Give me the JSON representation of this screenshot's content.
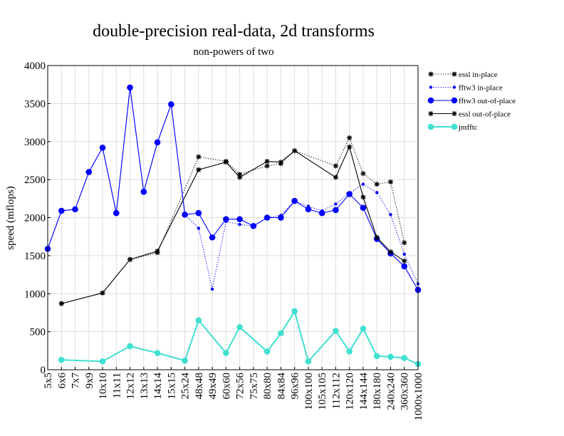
{
  "chart_data": {
    "type": "line",
    "title": "double-precision real-data, 2d transforms",
    "subtitle": "non-powers of two",
    "xlabel": "",
    "ylabel": "speed (mflops)",
    "ylim": [
      0,
      4000
    ],
    "yticks": [
      0,
      500,
      1000,
      1500,
      2000,
      2500,
      3000,
      3500,
      4000
    ],
    "grid": true,
    "legend_position": "right",
    "categories": [
      "5x5",
      "6x6",
      "7x7",
      "9x9",
      "10x10",
      "11x11",
      "12x12",
      "13x13",
      "14x14",
      "15x15",
      "25x24",
      "48x48",
      "49x49",
      "60x60",
      "72x56",
      "75x75",
      "80x80",
      "84x84",
      "96x96",
      "100x100",
      "105x105",
      "112x112",
      "120x120",
      "144x144",
      "180x180",
      "240x240",
      "360x360",
      "1000x1000"
    ],
    "series": [
      {
        "name": "essl in-place",
        "color": "#000000",
        "line_style": "dotted",
        "marker": "star",
        "values": [
          null,
          870,
          null,
          null,
          1010,
          null,
          1450,
          null,
          1540,
          null,
          null,
          2800,
          null,
          2740,
          2570,
          null,
          2680,
          2710,
          2880,
          null,
          null,
          2680,
          3050,
          2580,
          2440,
          2470,
          1670,
          null
        ]
      },
      {
        "name": "fftw3 in-place",
        "color": "#0000ff",
        "line_style": "dotted",
        "marker": "small-dot",
        "values": [
          1590,
          2090,
          2110,
          2600,
          2920,
          2060,
          3710,
          2340,
          2990,
          3490,
          2040,
          1860,
          1060,
          1950,
          1910,
          1890,
          2000,
          2030,
          2220,
          2150,
          2090,
          2180,
          2320,
          2440,
          2330,
          2040,
          1520,
          1130
        ]
      },
      {
        "name": "fftw3 out-of-place",
        "color": "#0000ff",
        "line_style": "solid",
        "marker": "dot",
        "values": [
          1590,
          2090,
          2110,
          2600,
          2920,
          2060,
          3710,
          2340,
          2990,
          3490,
          2040,
          2060,
          1740,
          1980,
          1980,
          1890,
          2000,
          2000,
          2220,
          2110,
          2060,
          2100,
          2310,
          2130,
          1720,
          1530,
          1360,
          1050
        ]
      },
      {
        "name": "essl out-of-place",
        "color": "#000000",
        "line_style": "solid",
        "marker": "star",
        "values": [
          null,
          870,
          null,
          null,
          1010,
          null,
          1450,
          null,
          1560,
          null,
          null,
          2630,
          null,
          2730,
          2530,
          null,
          2740,
          2730,
          2880,
          null,
          null,
          2530,
          2930,
          2270,
          1740,
          1550,
          1430,
          null
        ]
      },
      {
        "name": "jmfftc",
        "color": "#40e0d0",
        "line_style": "solid",
        "marker": "dot",
        "values": [
          null,
          130,
          null,
          null,
          110,
          null,
          310,
          null,
          220,
          null,
          120,
          650,
          null,
          220,
          560,
          null,
          240,
          480,
          770,
          110,
          null,
          510,
          240,
          540,
          180,
          170,
          155,
          75
        ]
      }
    ]
  }
}
